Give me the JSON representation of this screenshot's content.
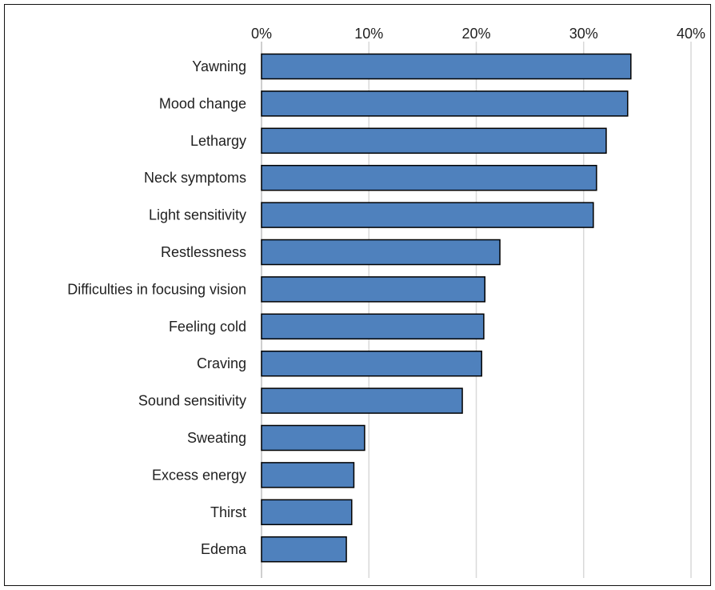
{
  "chart_data": {
    "type": "bar",
    "orientation": "horizontal",
    "title": "",
    "xlabel": "",
    "ylabel": "",
    "xlim": [
      0,
      40
    ],
    "x_ticks": [
      "0%",
      "10%",
      "20%",
      "30%",
      "40%"
    ],
    "x_tick_values": [
      0,
      10,
      20,
      30,
      40
    ],
    "x_axis_position": "top",
    "grid": "vertical",
    "legend": "none",
    "bar_color": "#4f81bd",
    "bar_edge_color": "#000000",
    "categories": [
      "Yawning",
      "Mood change",
      "Lethargy",
      "Neck symptoms",
      "Light sensitivity",
      "Restlessness",
      "Difficulties in focusing vision",
      "Feeling cold",
      "Craving",
      "Sound sensitivity",
      "Sweating",
      "Excess energy",
      "Thirst",
      "Edema"
    ],
    "values": [
      34.4,
      34.1,
      32.1,
      31.2,
      30.9,
      22.2,
      20.8,
      20.7,
      20.5,
      18.7,
      9.6,
      8.6,
      8.4,
      7.9
    ]
  }
}
